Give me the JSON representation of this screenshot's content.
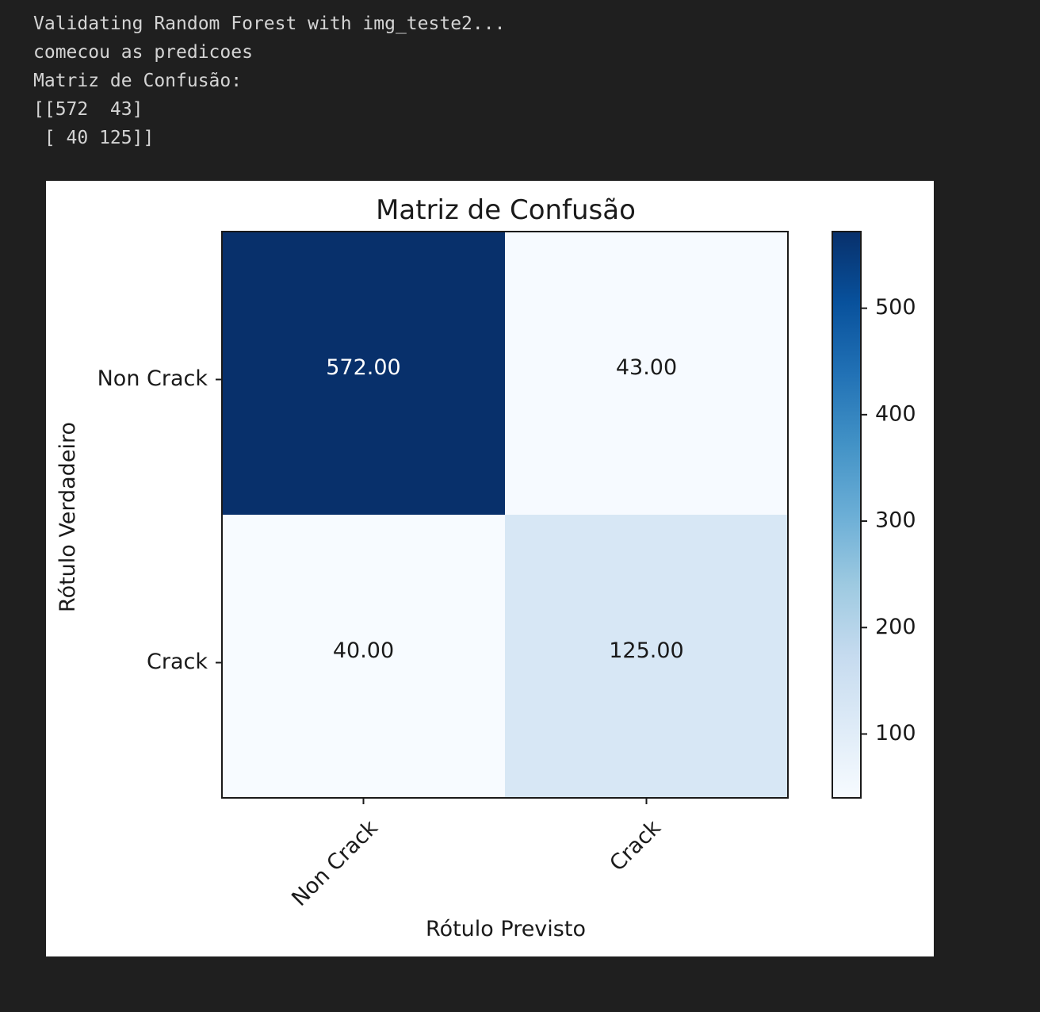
{
  "console_output": {
    "lines": [
      "Validating Random Forest with img_teste2...",
      "comecou as predicoes",
      "Matriz de Confusão:",
      "[[572  43]",
      " [ 40 125]]"
    ]
  },
  "chart_data": {
    "type": "heatmap",
    "title": "Matriz de Confusão",
    "xlabel": "Rótulo Previsto",
    "ylabel": "Rótulo Verdadeiro",
    "x_categories": [
      "Non Crack",
      "Crack"
    ],
    "y_categories": [
      "Non Crack",
      "Crack"
    ],
    "matrix": [
      [
        572,
        43
      ],
      [
        40,
        125
      ]
    ],
    "cell_labels": [
      [
        "572.00",
        "43.00"
      ],
      [
        "40.00",
        "125.00"
      ]
    ],
    "colormap": "Blues",
    "colorbar": {
      "min": 40,
      "max": 572,
      "ticks": [
        100,
        200,
        300,
        400,
        500
      ]
    },
    "grid": false
  }
}
